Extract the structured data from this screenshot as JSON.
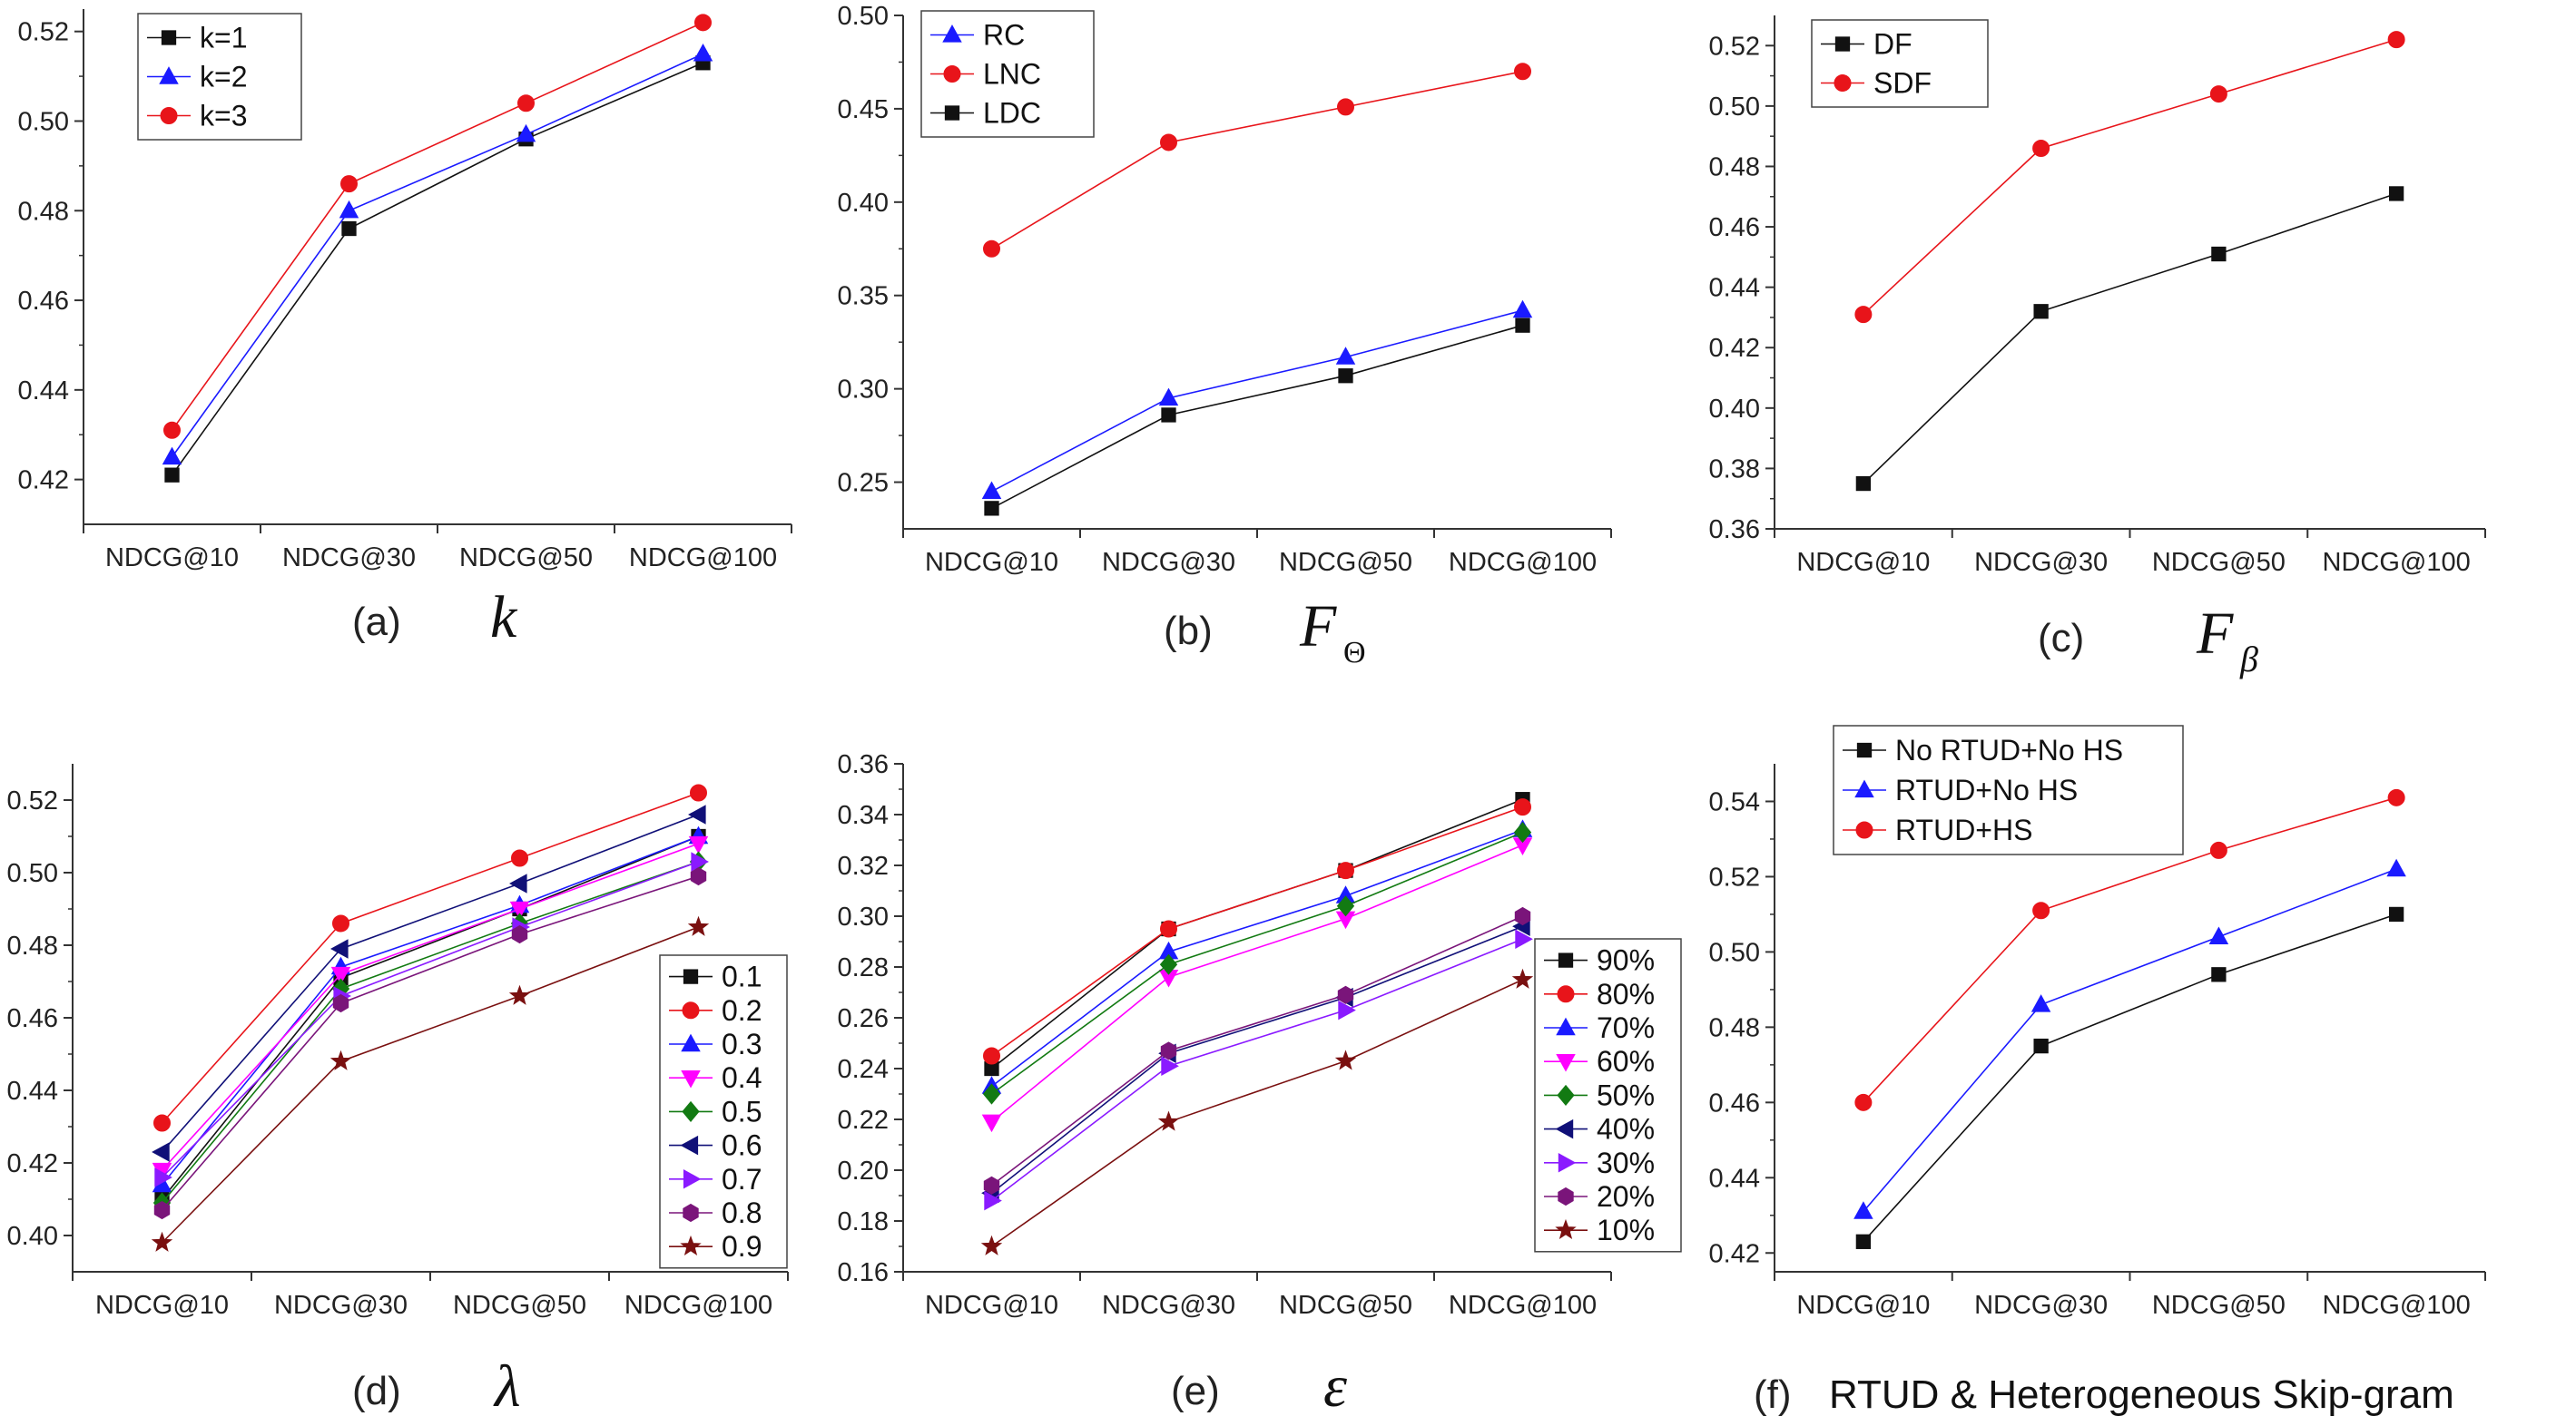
{
  "colors": {
    "black": "#111111",
    "blue": "#1a1aff",
    "red": "#e8141a",
    "magenta": "#ff00ff",
    "green": "#127a12",
    "navy": "#101078",
    "violet": "#8a1aff",
    "purple": "#7a157a",
    "darkred": "#7a1010"
  },
  "chart_data": [
    {
      "id": "a",
      "type": "line",
      "caption": {
        "tag": "(a)",
        "symbol": "k",
        "subscript": "",
        "text": ""
      },
      "categories": [
        "NDCG@10",
        "NDCG@30",
        "NDCG@50",
        "NDCG@100"
      ],
      "ylim": [
        0.41,
        0.525
      ],
      "yticks": [
        "0.42",
        "0.44",
        "0.46",
        "0.48",
        "0.50",
        "0.52"
      ],
      "legend": "top-left",
      "series": [
        {
          "name": "k=1",
          "marker": "square",
          "color": "#111111",
          "values": [
            0.421,
            0.476,
            0.496,
            0.513
          ]
        },
        {
          "name": "k=2",
          "marker": "triangle-up",
          "color": "#1a1aff",
          "values": [
            0.425,
            0.48,
            0.497,
            0.515
          ]
        },
        {
          "name": "k=3",
          "marker": "circle",
          "color": "#e8141a",
          "values": [
            0.431,
            0.486,
            0.504,
            0.522
          ]
        }
      ]
    },
    {
      "id": "b",
      "type": "line",
      "caption": {
        "tag": "(b)",
        "symbol": "F",
        "subscript": "Θ",
        "text": ""
      },
      "categories": [
        "NDCG@10",
        "NDCG@30",
        "NDCG@50",
        "NDCG@100"
      ],
      "ylim": [
        0.225,
        0.5
      ],
      "yticks": [
        "0.25",
        "0.30",
        "0.35",
        "0.40",
        "0.45",
        "0.50"
      ],
      "legend": "top-left",
      "series": [
        {
          "name": "RC",
          "marker": "triangle-up",
          "color": "#1a1aff",
          "values": [
            0.245,
            0.295,
            0.317,
            0.342
          ]
        },
        {
          "name": "LNC",
          "marker": "circle",
          "color": "#e8141a",
          "values": [
            0.375,
            0.432,
            0.451,
            0.47
          ]
        },
        {
          "name": "LDC",
          "marker": "square",
          "color": "#111111",
          "values": [
            0.236,
            0.286,
            0.307,
            0.334
          ]
        }
      ]
    },
    {
      "id": "c",
      "type": "line",
      "caption": {
        "tag": "(c)",
        "symbol": "F",
        "subscript": "β",
        "text": ""
      },
      "categories": [
        "NDCG@10",
        "NDCG@30",
        "NDCG@50",
        "NDCG@100"
      ],
      "ylim": [
        0.36,
        0.53
      ],
      "yticks": [
        "0.36",
        "0.38",
        "0.40",
        "0.42",
        "0.44",
        "0.46",
        "0.48",
        "0.50",
        "0.52"
      ],
      "legend": "top-left",
      "series": [
        {
          "name": "DF",
          "marker": "square",
          "color": "#111111",
          "values": [
            0.375,
            0.432,
            0.451,
            0.471
          ]
        },
        {
          "name": "SDF",
          "marker": "circle",
          "color": "#e8141a",
          "values": [
            0.431,
            0.486,
            0.504,
            0.522
          ]
        }
      ]
    },
    {
      "id": "d",
      "type": "line",
      "caption": {
        "tag": "(d)",
        "symbol": "λ",
        "subscript": "",
        "text": ""
      },
      "categories": [
        "NDCG@10",
        "NDCG@30",
        "NDCG@50",
        "NDCG@100"
      ],
      "ylim": [
        0.39,
        0.53
      ],
      "yticks": [
        "0.40",
        "0.42",
        "0.44",
        "0.46",
        "0.48",
        "0.50",
        "0.52"
      ],
      "legend": "right",
      "series": [
        {
          "name": "0.1",
          "marker": "square",
          "color": "#111111",
          "values": [
            0.41,
            0.471,
            0.49,
            0.51
          ]
        },
        {
          "name": "0.2",
          "marker": "circle",
          "color": "#e8141a",
          "values": [
            0.431,
            0.486,
            0.504,
            0.522
          ]
        },
        {
          "name": "0.3",
          "marker": "triangle-up",
          "color": "#1a1aff",
          "values": [
            0.414,
            0.474,
            0.491,
            0.51
          ]
        },
        {
          "name": "0.4",
          "marker": "triangle-down",
          "color": "#ff00ff",
          "values": [
            0.418,
            0.472,
            0.49,
            0.508
          ]
        },
        {
          "name": "0.5",
          "marker": "diamond",
          "color": "#127a12",
          "values": [
            0.409,
            0.468,
            0.486,
            0.503
          ]
        },
        {
          "name": "0.6",
          "marker": "triangle-left",
          "color": "#101078",
          "values": [
            0.423,
            0.479,
            0.497,
            0.516
          ]
        },
        {
          "name": "0.7",
          "marker": "triangle-right",
          "color": "#8a1aff",
          "values": [
            0.416,
            0.466,
            0.485,
            0.503
          ]
        },
        {
          "name": "0.8",
          "marker": "hexagon",
          "color": "#7a157a",
          "values": [
            0.407,
            0.464,
            0.483,
            0.499
          ]
        },
        {
          "name": "0.9",
          "marker": "star",
          "color": "#7a1010",
          "values": [
            0.398,
            0.448,
            0.466,
            0.485
          ]
        }
      ]
    },
    {
      "id": "e",
      "type": "line",
      "caption": {
        "tag": "(e)",
        "symbol": "ε",
        "subscript": "",
        "text": ""
      },
      "categories": [
        "NDCG@10",
        "NDCG@30",
        "NDCG@50",
        "NDCG@100"
      ],
      "ylim": [
        0.16,
        0.36
      ],
      "yticks": [
        "0.16",
        "0.18",
        "0.20",
        "0.22",
        "0.24",
        "0.26",
        "0.28",
        "0.30",
        "0.32",
        "0.34",
        "0.36"
      ],
      "legend": "right",
      "series": [
        {
          "name": "90%",
          "marker": "square",
          "color": "#111111",
          "values": [
            0.24,
            0.295,
            0.318,
            0.346
          ]
        },
        {
          "name": "80%",
          "marker": "circle",
          "color": "#e8141a",
          "values": [
            0.245,
            0.295,
            0.318,
            0.343
          ]
        },
        {
          "name": "70%",
          "marker": "triangle-up",
          "color": "#1a1aff",
          "values": [
            0.233,
            0.286,
            0.308,
            0.334
          ]
        },
        {
          "name": "60%",
          "marker": "triangle-down",
          "color": "#ff00ff",
          "values": [
            0.219,
            0.276,
            0.299,
            0.328
          ]
        },
        {
          "name": "50%",
          "marker": "diamond",
          "color": "#127a12",
          "values": [
            0.23,
            0.281,
            0.304,
            0.333
          ]
        },
        {
          "name": "40%",
          "marker": "triangle-left",
          "color": "#101078",
          "values": [
            0.191,
            0.246,
            0.268,
            0.296
          ]
        },
        {
          "name": "30%",
          "marker": "triangle-right",
          "color": "#8a1aff",
          "values": [
            0.188,
            0.241,
            0.263,
            0.291
          ]
        },
        {
          "name": "20%",
          "marker": "hexagon",
          "color": "#7a157a",
          "values": [
            0.194,
            0.247,
            0.269,
            0.3
          ]
        },
        {
          "name": "10%",
          "marker": "star",
          "color": "#7a1010",
          "values": [
            0.17,
            0.219,
            0.243,
            0.275
          ]
        }
      ]
    },
    {
      "id": "f",
      "type": "line",
      "caption": {
        "tag": "(f)",
        "symbol": "",
        "subscript": "",
        "text": "RTUD & Heterogeneous Skip-gram"
      },
      "categories": [
        "NDCG@10",
        "NDCG@30",
        "NDCG@50",
        "NDCG@100"
      ],
      "ylim": [
        0.415,
        0.55
      ],
      "yticks": [
        "0.42",
        "0.44",
        "0.46",
        "0.48",
        "0.50",
        "0.52",
        "0.54"
      ],
      "legend": "top-left",
      "series": [
        {
          "name": "No RTUD+No HS",
          "marker": "square",
          "color": "#111111",
          "values": [
            0.423,
            0.475,
            0.494,
            0.51
          ]
        },
        {
          "name": "RTUD+No HS",
          "marker": "triangle-up",
          "color": "#1a1aff",
          "values": [
            0.431,
            0.486,
            0.504,
            0.522
          ]
        },
        {
          "name": "RTUD+HS",
          "marker": "circle",
          "color": "#e8141a",
          "values": [
            0.46,
            0.511,
            0.527,
            0.541
          ]
        }
      ]
    }
  ]
}
